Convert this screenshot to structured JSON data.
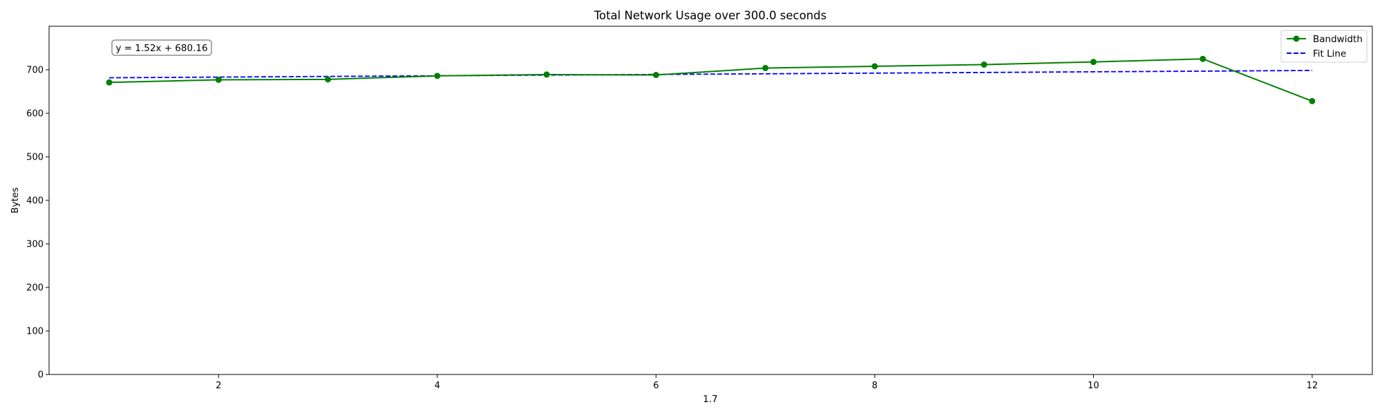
{
  "chart_data": {
    "type": "line",
    "title": "Total Network Usage over 300.0 seconds",
    "xlabel": "1.7",
    "ylabel": "Bytes",
    "xlim": [
      0.45,
      12.55
    ],
    "ylim": [
      0,
      800
    ],
    "xticks": [
      2,
      4,
      6,
      8,
      10,
      12
    ],
    "yticks": [
      0,
      100,
      200,
      300,
      400,
      500,
      600,
      700
    ],
    "grid": false,
    "legend_position": "top-right",
    "annotation": "y = 1.52x + 680.16",
    "colors": {
      "bandwidth": "#008000",
      "fit": "#0000ff"
    },
    "series": [
      {
        "name": "Bandwidth",
        "style": "solid-with-markers",
        "x": [
          1,
          2,
          3,
          4,
          5,
          6,
          7,
          8,
          9,
          10,
          11,
          12
        ],
        "y": [
          671,
          677,
          678,
          686,
          689,
          688,
          704,
          708,
          712,
          718,
          725,
          628
        ]
      },
      {
        "name": "Fit Line",
        "style": "dashed",
        "x": [
          1,
          12
        ],
        "y": [
          681.68,
          698.4
        ]
      }
    ]
  }
}
